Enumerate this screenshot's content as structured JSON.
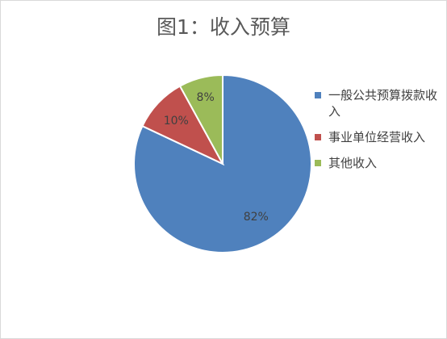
{
  "chart_data": {
    "type": "pie",
    "title": "图1：收入预算",
    "categories": [
      "一般公共预算拨款收入",
      "事业单位经营收入",
      "其他收入"
    ],
    "values": [
      82,
      10,
      8
    ],
    "labels": [
      "82%",
      "10%",
      "8%"
    ],
    "colors": [
      "#4f81bd",
      "#c0504d",
      "#9bbb59"
    ],
    "legend_position": "right"
  }
}
